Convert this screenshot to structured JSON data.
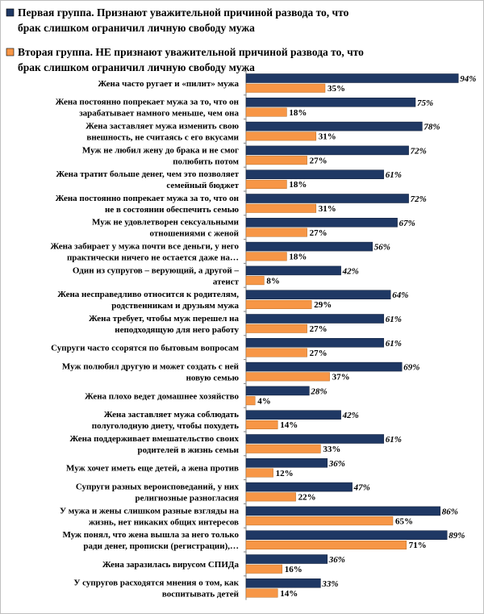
{
  "colors": {
    "series1": "#1f3864",
    "series2": "#f79646",
    "axis": "#808080",
    "border": "#bfbfbf"
  },
  "chart_data": {
    "type": "bar",
    "orientation": "horizontal",
    "legend_placement": "top",
    "xlim": [
      0,
      100
    ],
    "grid": false,
    "series": [
      {
        "name": "Первая группа. Признают уважительной причиной развода то, что брак слишком ограничил личную свободу мужа",
        "values": [
          94,
          75,
          78,
          72,
          61,
          72,
          67,
          56,
          42,
          64,
          61,
          61,
          69,
          28,
          42,
          61,
          36,
          47,
          86,
          89,
          36,
          33
        ]
      },
      {
        "name": "Вторая группа. НЕ признают уважительной причиной развода то, что брак слишком ограничил личную свободу мужа",
        "values": [
          35,
          18,
          31,
          27,
          18,
          31,
          27,
          18,
          8,
          29,
          27,
          27,
          37,
          4,
          14,
          33,
          12,
          22,
          65,
          71,
          16,
          14
        ]
      }
    ],
    "categories": [
      "Жена часто ругает и «пилит» мужа",
      "Жена постоянно попрекает мужа за то, что он зарабатывает намного меньше, чем она",
      "Жена заставляет мужа изменить свою внешность, не считаясь с его вкусами",
      "Муж не любил жену до брака и не смог полюбить потом",
      "Жена тратит больше денег, чем это позволяет семейный бюджет",
      "Жена постоянно попрекает мужа за то, что он не в состоянии обеспечить семью",
      "Муж не удовлетворен сексуальными отношениями с женой",
      "Жена забирает у мужа почти все деньги, у него практически ничего не остается даже на…",
      "Один из супругов – верующий, а другой – атеист",
      "Жена несправедливо относится к родителям, родственникам и друзьям мужа",
      "Жена требует, чтобы муж перешел на неподходящую для него работу",
      "Супруги часто ссорятся по бытовым вопросам",
      "Муж полюбил другую и может создать с ней новую семью",
      "Жена плохо ведет домашнее хозяйство",
      "Жена заставляет мужа соблюдать полуголодную диету, чтобы похудеть",
      "Жена поддерживает вмешательство своих родителей в жизнь семьи",
      "Муж хочет иметь еще детей, а жена  против",
      "Супруги разных вероисповеданий, у них религиозные разногласия",
      "У мужа и жены слишком разные взгляды на жизнь, нет никаких общих интересов",
      "Муж понял, что жена вышла за него только ради денег, прописки (регистрации),…",
      "Жена заразилась вирусом СПИДа",
      "У супругов расходятся мнения о том, как воспитывать детей"
    ],
    "category_lines": [
      [
        "Жена часто ругает и «пилит» мужа"
      ],
      [
        "Жена постоянно попрекает мужа за то, что он",
        "зарабатывает намного меньше, чем она"
      ],
      [
        "Жена заставляет мужа изменить свою",
        "внешность, не считаясь с его вкусами"
      ],
      [
        "Муж не любил жену до брака и не смог",
        "полюбить потом"
      ],
      [
        "Жена тратит больше денег, чем это позволяет",
        "семейный бюджет"
      ],
      [
        "Жена постоянно попрекает мужа за то, что он",
        "не в состоянии обеспечить семью"
      ],
      [
        "Муж не удовлетворен сексуальными",
        "отношениями с женой"
      ],
      [
        "Жена забирает у мужа почти все деньги, у него",
        "практически ничего не остается даже на…"
      ],
      [
        "Один из супругов – верующий, а другой –",
        "атеист"
      ],
      [
        "Жена несправедливо относится к родителям,",
        "родственникам и друзьям мужа"
      ],
      [
        "Жена требует, чтобы муж перешел на",
        "неподходящую для него работу"
      ],
      [
        "Супруги часто ссорятся по бытовым вопросам"
      ],
      [
        "Муж полюбил другую и может создать с ней",
        "новую семью"
      ],
      [
        "Жена плохо ведет домашнее хозяйство"
      ],
      [
        "Жена заставляет мужа соблюдать",
        "полуголодную диету, чтобы похудеть"
      ],
      [
        "Жена поддерживает вмешательство своих",
        "родителей в жизнь семьи"
      ],
      [
        "Муж хочет иметь еще детей, а жена  против"
      ],
      [
        "Супруги разных вероисповеданий, у них",
        "религиозные разногласия"
      ],
      [
        "У мужа и жены слишком разные взгляды на",
        "жизнь, нет никаких общих интересов"
      ],
      [
        "Муж понял, что жена вышла за него только",
        "ради денег, прописки (регистрации),…"
      ],
      [
        "Жена заразилась вирусом СПИДа"
      ],
      [
        "У супругов расходятся мнения о том, как",
        "воспитывать детей"
      ]
    ],
    "legend_lines": [
      [
        "Первая группа. Признают уважительной причиной развода то, что",
        "брак слишком ограничил личную свободу мужа"
      ],
      [
        "Вторая группа. НЕ признают уважительной причиной развода то, что",
        "брак слишком ограничил личную свободу мужа"
      ]
    ],
    "value_suffix": "%"
  }
}
